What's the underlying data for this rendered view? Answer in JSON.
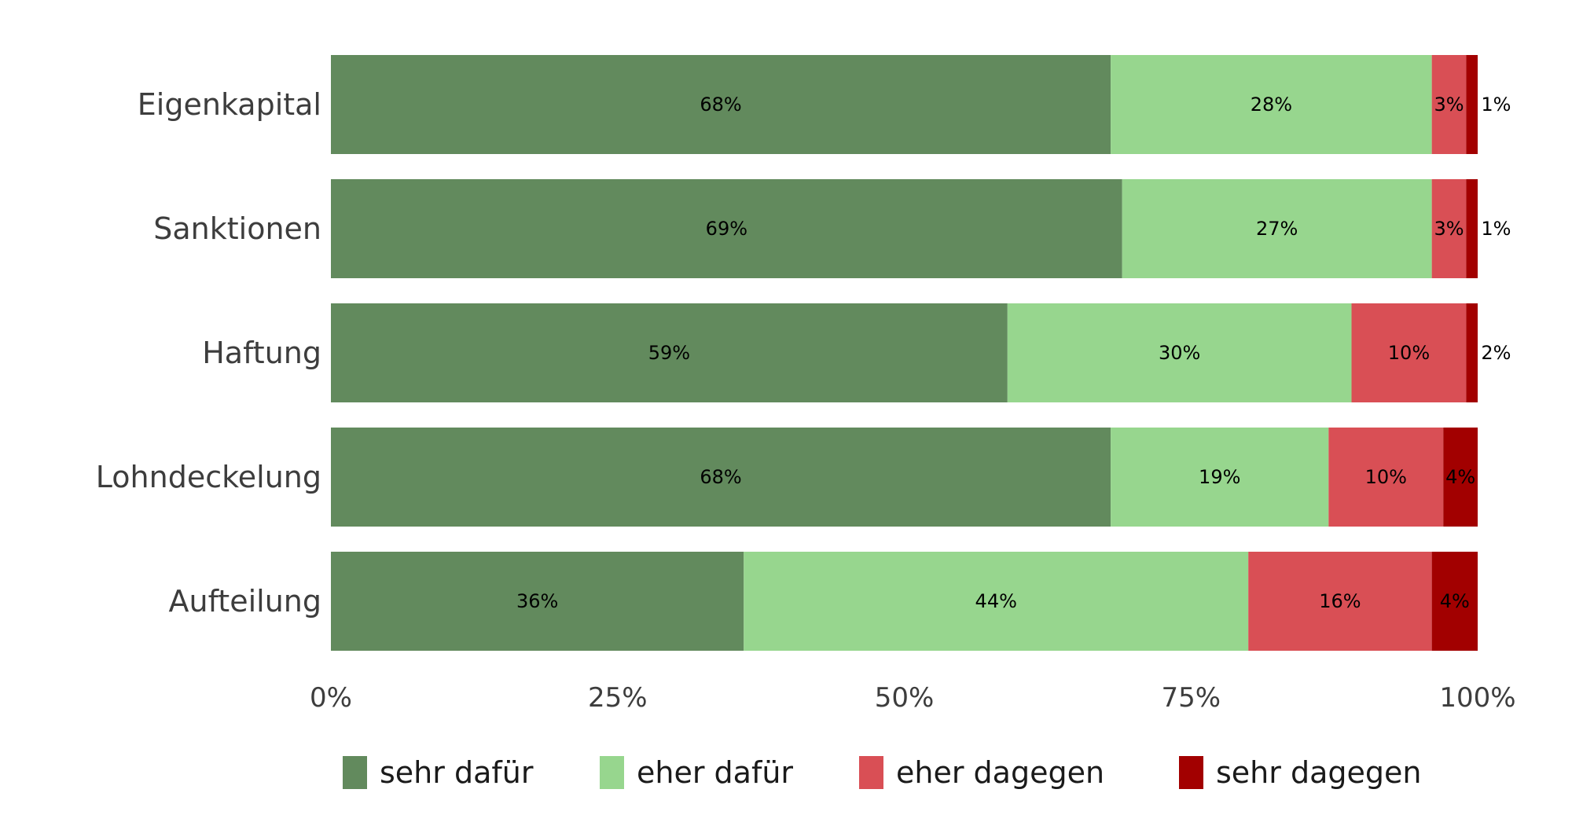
{
  "chart_data": {
    "type": "bar",
    "orientation": "horizontal",
    "stacked": true,
    "categories": [
      "Eigenkapital",
      "Sanktionen",
      "Haftung",
      "Lohndeckelung",
      "Aufteilung"
    ],
    "series": [
      {
        "name": "sehr dafür",
        "color": "#628a5d",
        "values": [
          68,
          69,
          59,
          68,
          36
        ]
      },
      {
        "name": "eher dafür",
        "color": "#97d68e",
        "values": [
          28,
          27,
          30,
          19,
          44
        ]
      },
      {
        "name": "eher dagegen",
        "color": "#d94f55",
        "values": [
          3,
          3,
          10,
          10,
          16
        ]
      },
      {
        "name": "sehr dagegen",
        "color": "#a20000",
        "values": [
          1,
          1,
          2,
          4,
          4
        ]
      }
    ],
    "data_labels": [
      [
        "68%",
        "28%",
        "3%",
        "1%"
      ],
      [
        "69%",
        "27%",
        "3%",
        "1%"
      ],
      [
        "59%",
        "30%",
        "10%",
        "2%"
      ],
      [
        "68%",
        "19%",
        "10%",
        "4%"
      ],
      [
        "36%",
        "44%",
        "16%",
        "4%"
      ]
    ],
    "xticks": [
      "0%",
      "25%",
      "50%",
      "75%",
      "100%"
    ],
    "xlim": [
      0,
      100
    ],
    "grid": false,
    "legend_position": "bottom"
  }
}
